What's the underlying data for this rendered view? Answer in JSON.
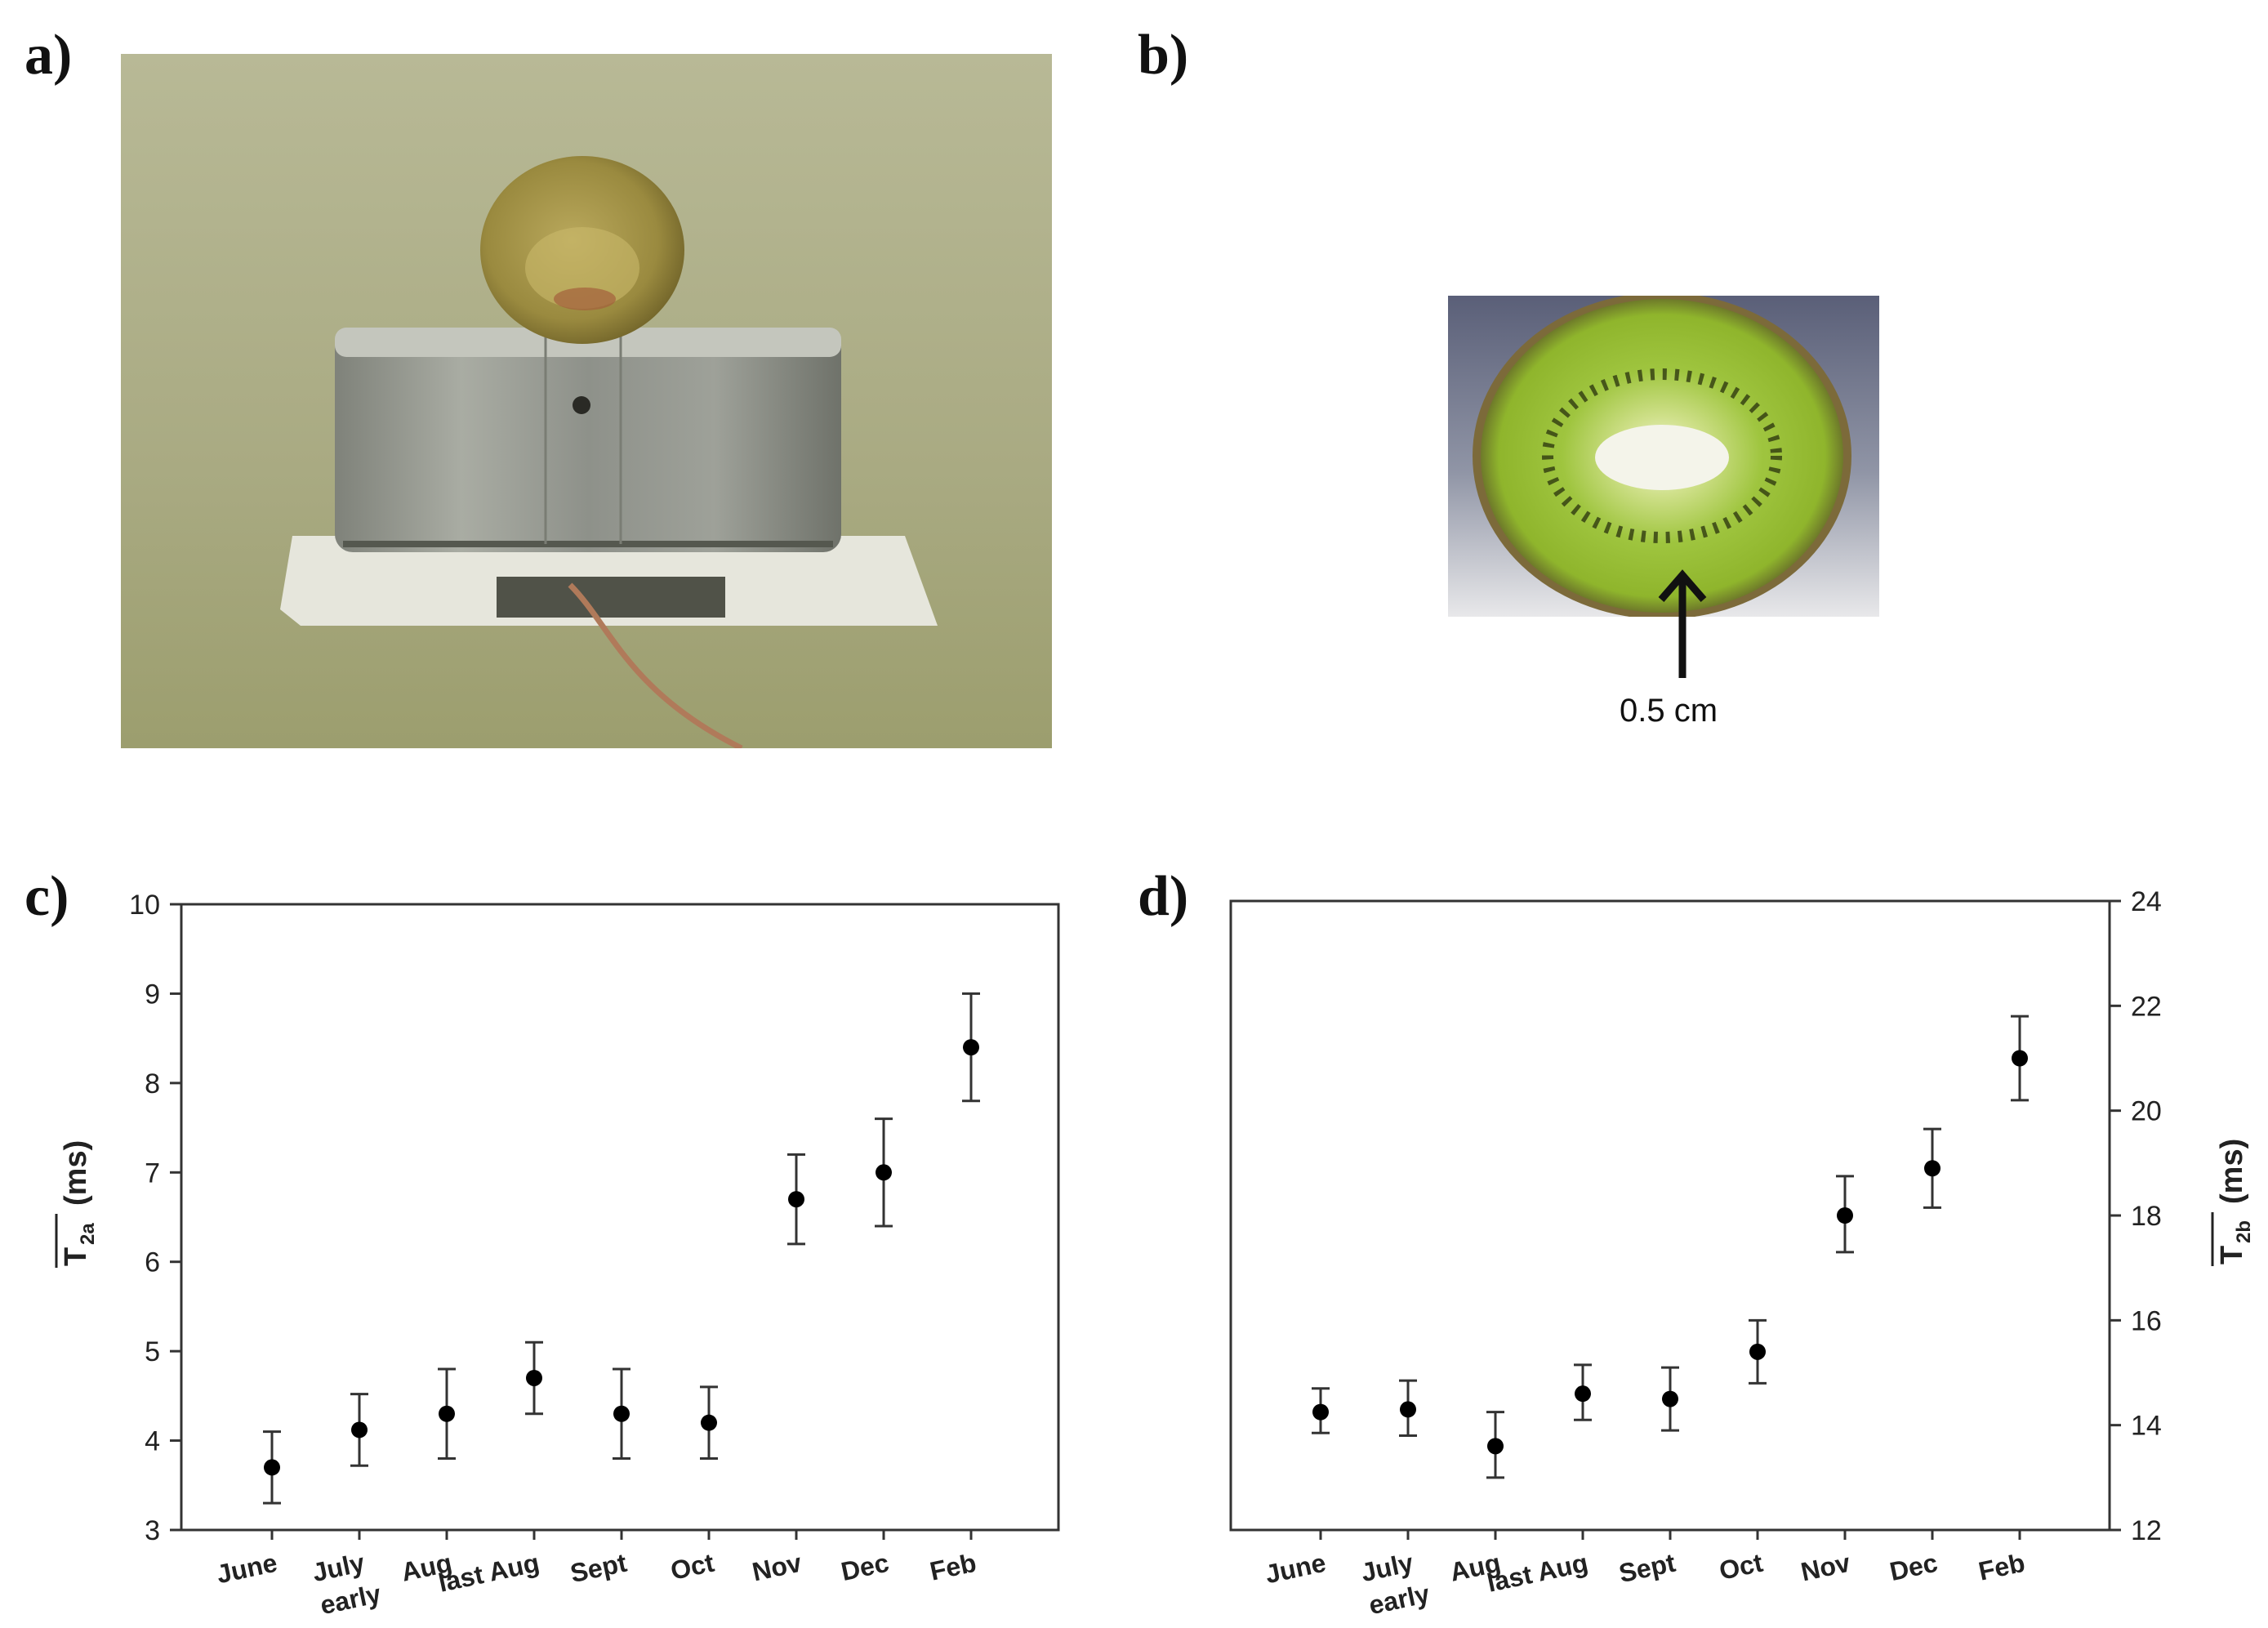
{
  "panels": {
    "a": "a)",
    "b": "b)",
    "c": "c)",
    "d": "d)"
  },
  "photo_b": {
    "annotation": "0.5 cm"
  },
  "colors": {
    "marker": "#000000",
    "errorbar": "#333333",
    "axis": "#333333"
  },
  "chart_data": [
    {
      "type": "scatter",
      "panel": "c",
      "categories": [
        "June",
        "July",
        "Aug",
        "last Aug",
        "Sept",
        "Oct",
        "Nov",
        "Dec",
        "Feb"
      ],
      "category_sublabels": [
        "",
        "early",
        "",
        "",
        "",
        "",
        "",
        "",
        ""
      ],
      "values": [
        3.7,
        4.12,
        4.3,
        4.7,
        4.3,
        4.2,
        6.7,
        7.0,
        8.4
      ],
      "error_upper": [
        4.1,
        4.52,
        4.8,
        5.1,
        4.8,
        4.6,
        7.2,
        7.6,
        9.0
      ],
      "error_lower": [
        3.3,
        3.72,
        3.8,
        4.3,
        3.8,
        3.8,
        6.2,
        6.4,
        7.8
      ],
      "ylabel_main": "T",
      "ylabel_sub": "2a",
      "ylabel_unit": "(ms)",
      "ylim": [
        3,
        10
      ],
      "yticks": [
        "3",
        "4",
        "5",
        "6",
        "7",
        "8",
        "9",
        "10"
      ],
      "y_axis_side": "left",
      "grid": false
    },
    {
      "type": "scatter",
      "panel": "d",
      "categories": [
        "June",
        "July",
        "Aug",
        "last Aug",
        "Sept",
        "Oct",
        "Nov",
        "Dec",
        "Feb"
      ],
      "category_sublabels": [
        "",
        "early",
        "",
        "",
        "",
        "",
        "",
        "",
        ""
      ],
      "values": [
        14.25,
        14.3,
        13.6,
        14.6,
        14.5,
        15.4,
        18.0,
        18.9,
        21.0
      ],
      "error_upper": [
        14.7,
        14.85,
        14.25,
        15.15,
        15.1,
        16.0,
        18.75,
        19.65,
        21.8
      ],
      "error_lower": [
        13.85,
        13.8,
        13.0,
        14.1,
        13.9,
        14.8,
        17.3,
        18.15,
        20.2
      ],
      "ylabel_main": "T",
      "ylabel_sub": "2b",
      "ylabel_unit": "(ms)",
      "ylim": [
        12,
        24
      ],
      "yticks": [
        "12",
        "14",
        "16",
        "18",
        "20",
        "22",
        "24"
      ],
      "y_axis_side": "right",
      "grid": false
    }
  ]
}
